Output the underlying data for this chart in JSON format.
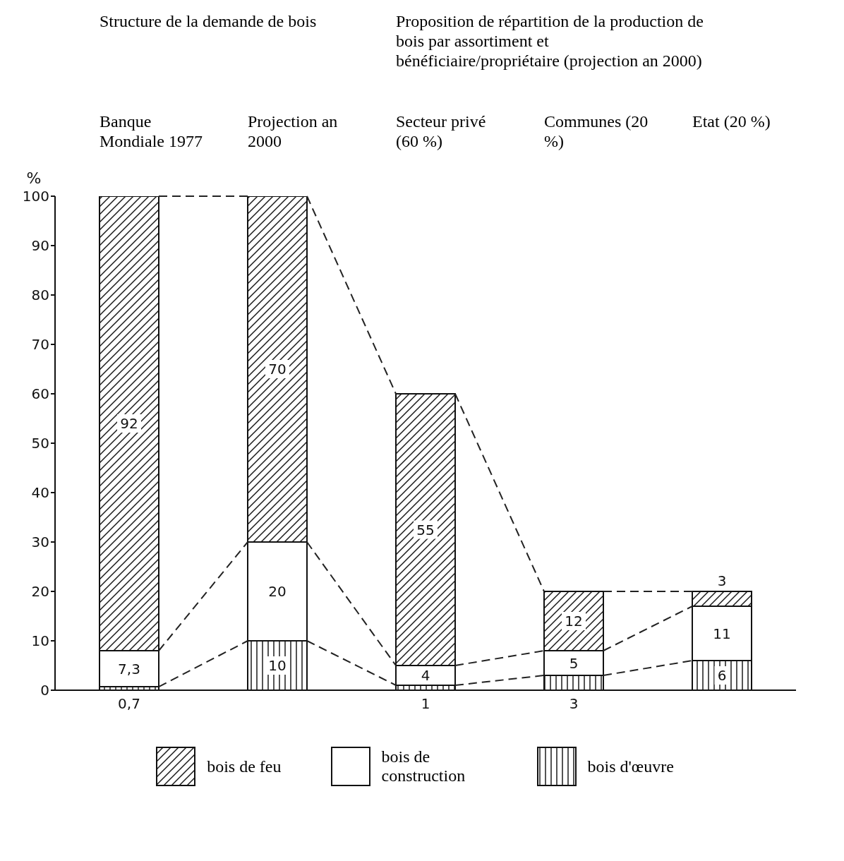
{
  "chart_data": {
    "type": "bar",
    "stacked": true,
    "annotations": [
      "Structure de la demande de bois",
      "Proposition de répartition de la production de bois par assortiment et bénéficiaire/propriétaire (projection an 2000)"
    ],
    "ylabel": "%",
    "categories": [
      "Banque Mondiale 1977",
      "Projection an 2000",
      "Secteur privé (60 %)",
      "Communes (20 %)",
      "Etat (20 %)"
    ],
    "ylim": [
      0,
      100
    ],
    "yticks": [
      0,
      10,
      20,
      30,
      40,
      50,
      60,
      70,
      80,
      90,
      100
    ],
    "grid": false,
    "legend": "bottom",
    "series": [
      {
        "name": "bois d'œuvre",
        "color": "#1a1a1a",
        "values": [
          0.7,
          10,
          1,
          3,
          6
        ],
        "value_labels": [
          "0,7",
          "10",
          "1",
          "3",
          "6"
        ]
      },
      {
        "name": "bois de construction",
        "color": "#ffffff",
        "values": [
          7.3,
          20,
          4,
          5,
          11
        ],
        "value_labels": [
          "7,3",
          "20",
          "4",
          "5",
          "11"
        ]
      },
      {
        "name": "bois de feu",
        "color": "#1a1a1a",
        "values": [
          92,
          70,
          55,
          12,
          3
        ],
        "value_labels": [
          "92",
          "70",
          "55",
          "12",
          "3"
        ]
      }
    ]
  }
}
